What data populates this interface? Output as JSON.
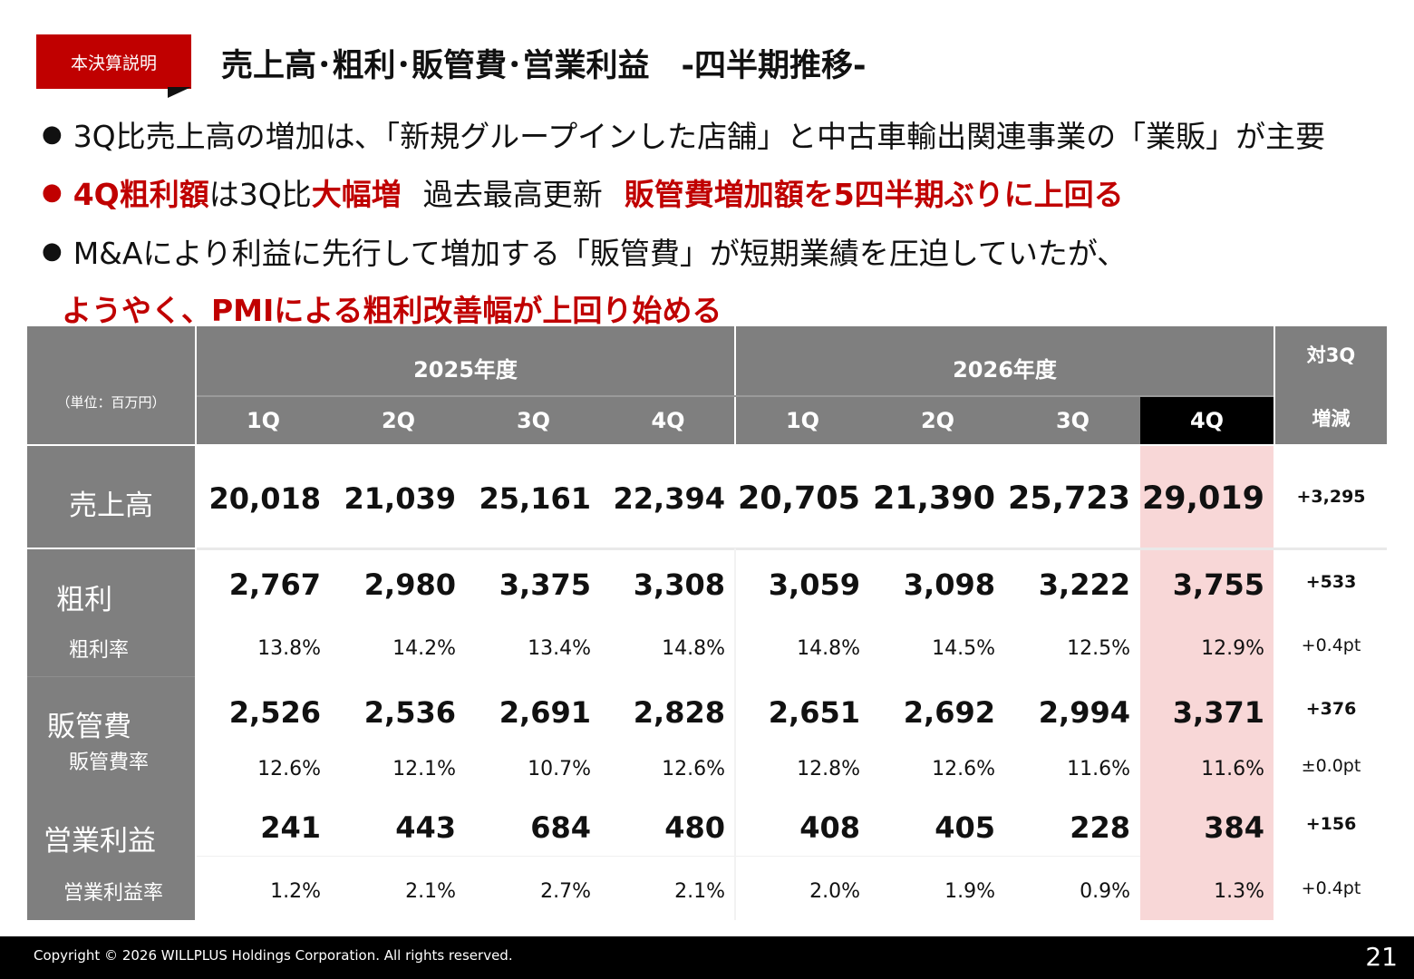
{
  "tag": "本決算説明",
  "title": "売上高･粗利･販管費･営業利益　-四半期推移-",
  "bullets": {
    "dot": "●",
    "b1": "3Q比売上高の増加は､「新規グループインした店舗」と中古車輸出関連事業の「業販」が主要",
    "b2_a": "4Q粗利額",
    "b2_b": "は3Q比",
    "b2_c": "大幅増",
    "b2_d": "過去最高更新",
    "b2_e": "販管費増加額を5四半期ぶりに上回る",
    "b3": "M&Aにより利益に先行して増加する「販管費」が短期業績を圧迫していたが、",
    "b4": "ようやく、PMIによる粗利改善幅が上回り始める"
  },
  "table": {
    "unit": "（単位：百万円）",
    "year1": "2025年度",
    "year2": "2026年度",
    "delta_header_1": "対3Q",
    "delta_header_2": "増減",
    "quarters": [
      "1Q",
      "2Q",
      "3Q",
      "4Q",
      "1Q",
      "2Q",
      "3Q",
      "4Q"
    ],
    "rows": {
      "sales_label": "売上高",
      "sales": [
        "20,018",
        "21,039",
        "25,161",
        "22,394",
        "20,705",
        "21,390",
        "25,723",
        "29,019"
      ],
      "sales_delta": "+3,295",
      "gp_label": "粗利",
      "gp": [
        "2,767",
        "2,980",
        "3,375",
        "3,308",
        "3,059",
        "3,098",
        "3,222",
        "3,755"
      ],
      "gp_delta": "+533",
      "gpr_label": "粗利率",
      "gpr": [
        "13.8%",
        "14.2%",
        "13.4%",
        "14.8%",
        "14.8%",
        "14.5%",
        "12.5%",
        "12.9%"
      ],
      "gpr_delta": "+0.4pt",
      "sga_label": "販管費",
      "sga": [
        "2,526",
        "2,536",
        "2,691",
        "2,828",
        "2,651",
        "2,692",
        "2,994",
        "3,371"
      ],
      "sga_delta": "+376",
      "sgar_label": "販管費率",
      "sgar": [
        "12.6%",
        "12.1%",
        "10.7%",
        "12.6%",
        "12.8%",
        "12.6%",
        "11.6%",
        "11.6%"
      ],
      "sgar_delta": "±0.0pt",
      "op_label": "営業利益",
      "op": [
        "241",
        "443",
        "684",
        "480",
        "408",
        "405",
        "228",
        "384"
      ],
      "op_delta": "+156",
      "opr_label": "営業利益率",
      "opr": [
        "1.2%",
        "2.1%",
        "2.7%",
        "2.1%",
        "2.0%",
        "1.9%",
        "0.9%",
        "1.3%"
      ],
      "opr_delta": "+0.4pt"
    }
  },
  "footer": {
    "copyright": "Copyright © 2026 WILLPLUS Holdings Corporation. All rights reserved.",
    "page": "21"
  },
  "colors": {
    "accent": "#c00000",
    "header_gray": "#7f7f7f",
    "highlight": "#f8d7d7"
  }
}
